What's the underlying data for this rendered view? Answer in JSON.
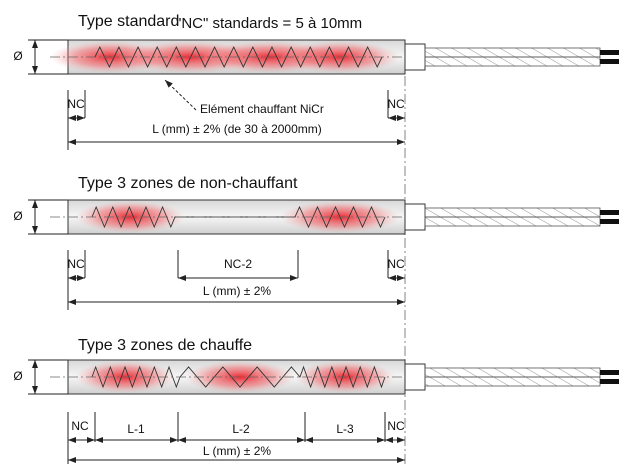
{
  "sections": [
    {
      "title": "Type standard",
      "note": "\"NC\" standards = 5 à 10mm",
      "diameter": "Ø",
      "dims": [
        "NC",
        "NC"
      ],
      "element": "Elément chauffant NiCr",
      "length": "L (mm) ± 2%  (de 30 à 2000mm)"
    },
    {
      "title": "Type 3 zones de non-chauffant",
      "diameter": "Ø",
      "dims": [
        "NC",
        "NC-2",
        "NC"
      ],
      "length": "L (mm) ± 2%"
    },
    {
      "title": "Type 3 zones de chauffe",
      "diameter": "Ø",
      "dims": [
        "NC",
        "L-1",
        "L-2",
        "L-3",
        "NC"
      ],
      "length": "L (mm) ± 2%"
    }
  ]
}
